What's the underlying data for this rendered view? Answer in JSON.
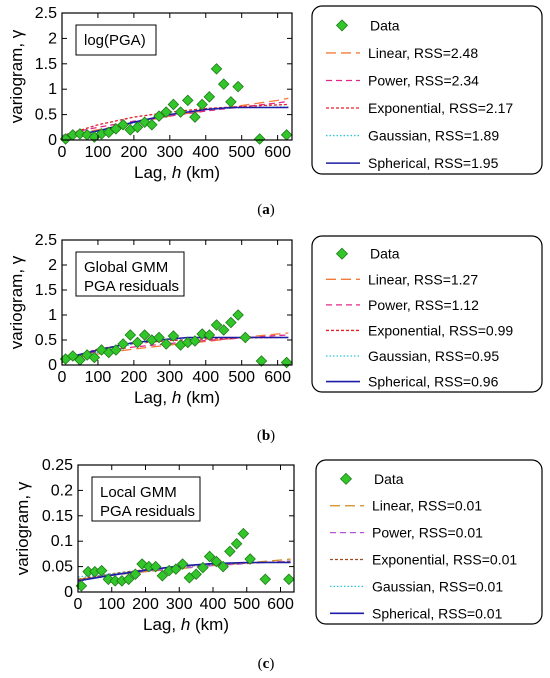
{
  "panel_labels": [
    "(a)",
    "(b)",
    "(c)"
  ],
  "chart_data": [
    {
      "type": "scatter",
      "annotation": "log(PGA)",
      "xlabel_prefix": "Lag, ",
      "xlabel_var": "h",
      "xlabel_suffix": " (km)",
      "ylabel": "variogram, γ",
      "xlim": [
        0,
        640
      ],
      "ylim": [
        0,
        2.5
      ],
      "xticks": [
        0,
        100,
        200,
        300,
        400,
        500,
        600
      ],
      "yticks": [
        "0",
        "0.5",
        "1",
        "1.5",
        "2",
        "2.5"
      ],
      "ytick_values": [
        0,
        0.5,
        1,
        1.5,
        2,
        2.5
      ],
      "points": [
        {
          "x": 10,
          "y": 0.02
        },
        {
          "x": 30,
          "y": 0.1
        },
        {
          "x": 50,
          "y": 0.12
        },
        {
          "x": 70,
          "y": 0.1
        },
        {
          "x": 90,
          "y": 0.06
        },
        {
          "x": 110,
          "y": 0.12
        },
        {
          "x": 130,
          "y": 0.15
        },
        {
          "x": 150,
          "y": 0.22
        },
        {
          "x": 170,
          "y": 0.3
        },
        {
          "x": 190,
          "y": 0.2
        },
        {
          "x": 210,
          "y": 0.25
        },
        {
          "x": 230,
          "y": 0.35
        },
        {
          "x": 250,
          "y": 0.3
        },
        {
          "x": 270,
          "y": 0.47
        },
        {
          "x": 290,
          "y": 0.55
        },
        {
          "x": 310,
          "y": 0.7
        },
        {
          "x": 330,
          "y": 0.55
        },
        {
          "x": 350,
          "y": 0.78
        },
        {
          "x": 370,
          "y": 0.45
        },
        {
          "x": 390,
          "y": 0.7
        },
        {
          "x": 410,
          "y": 0.85
        },
        {
          "x": 430,
          "y": 1.4
        },
        {
          "x": 450,
          "y": 1.1
        },
        {
          "x": 470,
          "y": 0.75
        },
        {
          "x": 490,
          "y": 1.05
        },
        {
          "x": 550,
          "y": 0.02
        },
        {
          "x": 625,
          "y": 0.1
        }
      ],
      "legend": {
        "data_label": "Data",
        "entries": [
          {
            "label": "Linear, RSS=2.48",
            "color": "#f47a3a",
            "style": "longdash"
          },
          {
            "label": "Power, RSS=2.34",
            "color": "#e0288a",
            "style": "dash"
          },
          {
            "label": "Exponential, RSS=2.17",
            "color": "#e0202a",
            "style": "shortdash"
          },
          {
            "label": "Gaussian, RSS=1.89",
            "color": "#2fc6d8",
            "style": "dot"
          },
          {
            "label": "Spherical, RSS=1.95",
            "color": "#1c1ca8",
            "style": "solid"
          }
        ]
      },
      "models": {
        "Linear": [
          [
            0,
            0.08
          ],
          [
            100,
            0.2
          ],
          [
            200,
            0.33
          ],
          [
            300,
            0.47
          ],
          [
            400,
            0.58
          ],
          [
            500,
            0.68
          ],
          [
            600,
            0.78
          ],
          [
            630,
            0.82
          ]
        ],
        "Power": [
          [
            0,
            0.05
          ],
          [
            50,
            0.18
          ],
          [
            100,
            0.25
          ],
          [
            200,
            0.37
          ],
          [
            300,
            0.47
          ],
          [
            400,
            0.57
          ],
          [
            500,
            0.65
          ],
          [
            600,
            0.73
          ],
          [
            630,
            0.76
          ]
        ],
        "Exponential": [
          [
            0,
            0.08
          ],
          [
            100,
            0.3
          ],
          [
            200,
            0.45
          ],
          [
            300,
            0.55
          ],
          [
            400,
            0.62
          ],
          [
            500,
            0.66
          ],
          [
            600,
            0.69
          ],
          [
            630,
            0.7
          ]
        ],
        "Gaussian": [
          [
            0,
            0.09
          ],
          [
            100,
            0.16
          ],
          [
            200,
            0.33
          ],
          [
            300,
            0.5
          ],
          [
            400,
            0.6
          ],
          [
            500,
            0.64
          ],
          [
            600,
            0.65
          ],
          [
            630,
            0.65
          ]
        ],
        "Spherical": [
          [
            0,
            0.05
          ],
          [
            100,
            0.18
          ],
          [
            200,
            0.35
          ],
          [
            300,
            0.5
          ],
          [
            400,
            0.6
          ],
          [
            470,
            0.64
          ],
          [
            630,
            0.64
          ]
        ]
      },
      "grid": false
    },
    {
      "type": "scatter",
      "annotation": "Global GMM\nPGA residuals",
      "xlabel_prefix": "Lag, ",
      "xlabel_var": "h",
      "xlabel_suffix": " (km)",
      "ylabel": "variogram, γ",
      "xlim": [
        0,
        640
      ],
      "ylim": [
        0,
        2.5
      ],
      "xticks": [
        0,
        100,
        200,
        300,
        400,
        500,
        600
      ],
      "yticks": [
        "0",
        "0.5",
        "1",
        "1.5",
        "2",
        "2.5"
      ],
      "ytick_values": [
        0,
        0.5,
        1,
        1.5,
        2,
        2.5
      ],
      "points": [
        {
          "x": 10,
          "y": 0.12
        },
        {
          "x": 30,
          "y": 0.18
        },
        {
          "x": 50,
          "y": 0.1
        },
        {
          "x": 70,
          "y": 0.2
        },
        {
          "x": 90,
          "y": 0.15
        },
        {
          "x": 110,
          "y": 0.3
        },
        {
          "x": 130,
          "y": 0.25
        },
        {
          "x": 150,
          "y": 0.3
        },
        {
          "x": 170,
          "y": 0.42
        },
        {
          "x": 190,
          "y": 0.6
        },
        {
          "x": 210,
          "y": 0.45
        },
        {
          "x": 230,
          "y": 0.6
        },
        {
          "x": 250,
          "y": 0.5
        },
        {
          "x": 270,
          "y": 0.55
        },
        {
          "x": 290,
          "y": 0.42
        },
        {
          "x": 310,
          "y": 0.58
        },
        {
          "x": 330,
          "y": 0.4
        },
        {
          "x": 350,
          "y": 0.45
        },
        {
          "x": 370,
          "y": 0.48
        },
        {
          "x": 390,
          "y": 0.62
        },
        {
          "x": 410,
          "y": 0.6
        },
        {
          "x": 430,
          "y": 0.8
        },
        {
          "x": 450,
          "y": 0.7
        },
        {
          "x": 470,
          "y": 0.85
        },
        {
          "x": 490,
          "y": 1.0
        },
        {
          "x": 510,
          "y": 0.55
        },
        {
          "x": 555,
          "y": 0.08
        },
        {
          "x": 625,
          "y": 0.05
        }
      ],
      "legend": {
        "data_label": "Data",
        "entries": [
          {
            "label": "Linear, RSS=1.27",
            "color": "#f47a3a",
            "style": "longdash"
          },
          {
            "label": "Power, RSS=1.12",
            "color": "#e0288a",
            "style": "dash"
          },
          {
            "label": "Exponential, RSS=0.99",
            "color": "#e0202a",
            "style": "shortdash"
          },
          {
            "label": "Gaussian, RSS=0.95",
            "color": "#2fc6d8",
            "style": "dot"
          },
          {
            "label": "Spherical, RSS=0.96",
            "color": "#1c1ca8",
            "style": "solid"
          }
        ]
      },
      "models": {
        "Linear": [
          [
            0,
            0.12
          ],
          [
            100,
            0.22
          ],
          [
            200,
            0.32
          ],
          [
            300,
            0.4
          ],
          [
            400,
            0.47
          ],
          [
            500,
            0.55
          ],
          [
            600,
            0.62
          ],
          [
            630,
            0.64
          ]
        ],
        "Power": [
          [
            0,
            0.05
          ],
          [
            50,
            0.2
          ],
          [
            100,
            0.27
          ],
          [
            200,
            0.36
          ],
          [
            300,
            0.43
          ],
          [
            400,
            0.49
          ],
          [
            500,
            0.54
          ],
          [
            600,
            0.59
          ],
          [
            630,
            0.6
          ]
        ],
        "Exponential": [
          [
            0,
            0.1
          ],
          [
            100,
            0.32
          ],
          [
            200,
            0.43
          ],
          [
            300,
            0.49
          ],
          [
            400,
            0.52
          ],
          [
            500,
            0.54
          ],
          [
            600,
            0.55
          ],
          [
            630,
            0.55
          ]
        ],
        "Gaussian": [
          [
            0,
            0.15
          ],
          [
            100,
            0.25
          ],
          [
            200,
            0.42
          ],
          [
            300,
            0.52
          ],
          [
            400,
            0.55
          ],
          [
            500,
            0.55
          ],
          [
            630,
            0.55
          ]
        ],
        "Spherical": [
          [
            0,
            0.12
          ],
          [
            100,
            0.3
          ],
          [
            200,
            0.45
          ],
          [
            300,
            0.52
          ],
          [
            350,
            0.55
          ],
          [
            630,
            0.55
          ]
        ]
      },
      "grid": false
    },
    {
      "type": "scatter",
      "annotation": "Local GMM\nPGA residuals",
      "xlabel_prefix": "Lag, ",
      "xlabel_var": "h",
      "xlabel_suffix": " (km)",
      "ylabel": "variogram, γ",
      "xlim": [
        0,
        640
      ],
      "ylim": [
        0,
        0.25
      ],
      "xticks": [
        0,
        100,
        200,
        300,
        400,
        500,
        600
      ],
      "yticks": [
        "0",
        "0.05",
        "0.1",
        "0.15",
        "0.2",
        "0.25"
      ],
      "ytick_values": [
        0,
        0.05,
        0.1,
        0.15,
        0.2,
        0.25
      ],
      "points": [
        {
          "x": 10,
          "y": 0.012
        },
        {
          "x": 30,
          "y": 0.04
        },
        {
          "x": 50,
          "y": 0.04
        },
        {
          "x": 70,
          "y": 0.042
        },
        {
          "x": 90,
          "y": 0.025
        },
        {
          "x": 110,
          "y": 0.022
        },
        {
          "x": 130,
          "y": 0.022
        },
        {
          "x": 150,
          "y": 0.025
        },
        {
          "x": 170,
          "y": 0.035
        },
        {
          "x": 190,
          "y": 0.055
        },
        {
          "x": 210,
          "y": 0.05
        },
        {
          "x": 230,
          "y": 0.05
        },
        {
          "x": 250,
          "y": 0.032
        },
        {
          "x": 270,
          "y": 0.042
        },
        {
          "x": 290,
          "y": 0.045
        },
        {
          "x": 310,
          "y": 0.055
        },
        {
          "x": 330,
          "y": 0.028
        },
        {
          "x": 350,
          "y": 0.035
        },
        {
          "x": 370,
          "y": 0.048
        },
        {
          "x": 390,
          "y": 0.07
        },
        {
          "x": 410,
          "y": 0.06
        },
        {
          "x": 430,
          "y": 0.05
        },
        {
          "x": 450,
          "y": 0.08
        },
        {
          "x": 470,
          "y": 0.095
        },
        {
          "x": 490,
          "y": 0.115
        },
        {
          "x": 510,
          "y": 0.065
        },
        {
          "x": 555,
          "y": 0.025
        },
        {
          "x": 625,
          "y": 0.025
        }
      ],
      "legend": {
        "data_label": "Data",
        "entries": [
          {
            "label": "Linear, RSS=0.01",
            "color": "#d08a1c",
            "style": "longdash"
          },
          {
            "label": "Power, RSS=0.01",
            "color": "#b455d6",
            "style": "dash"
          },
          {
            "label": "Exponential, RSS=0.01",
            "color": "#a04a20",
            "style": "shortdash"
          },
          {
            "label": "Gaussian, RSS=0.01",
            "color": "#2fc6d8",
            "style": "dot"
          },
          {
            "label": "Spherical, RSS=0.01",
            "color": "#1c1ca8",
            "style": "solid"
          }
        ]
      },
      "models": {
        "Linear": [
          [
            0,
            0.025
          ],
          [
            100,
            0.033
          ],
          [
            200,
            0.04
          ],
          [
            300,
            0.046
          ],
          [
            400,
            0.052
          ],
          [
            500,
            0.057
          ],
          [
            600,
            0.063
          ],
          [
            630,
            0.065
          ]
        ],
        "Power": [
          [
            0,
            0.02
          ],
          [
            50,
            0.03
          ],
          [
            100,
            0.034
          ],
          [
            200,
            0.041
          ],
          [
            300,
            0.047
          ],
          [
            400,
            0.052
          ],
          [
            500,
            0.056
          ],
          [
            600,
            0.06
          ],
          [
            630,
            0.061
          ]
        ],
        "Exponential": [
          [
            0,
            0.025
          ],
          [
            100,
            0.036
          ],
          [
            200,
            0.044
          ],
          [
            300,
            0.05
          ],
          [
            400,
            0.054
          ],
          [
            500,
            0.057
          ],
          [
            600,
            0.059
          ],
          [
            630,
            0.06
          ]
        ],
        "Gaussian": [
          [
            0,
            0.03
          ],
          [
            100,
            0.035
          ],
          [
            200,
            0.043
          ],
          [
            300,
            0.05
          ],
          [
            400,
            0.055
          ],
          [
            500,
            0.058
          ],
          [
            630,
            0.058
          ]
        ],
        "Spherical": [
          [
            0,
            0.022
          ],
          [
            100,
            0.033
          ],
          [
            200,
            0.043
          ],
          [
            300,
            0.051
          ],
          [
            400,
            0.056
          ],
          [
            500,
            0.058
          ],
          [
            630,
            0.058
          ]
        ]
      },
      "grid": false
    }
  ]
}
